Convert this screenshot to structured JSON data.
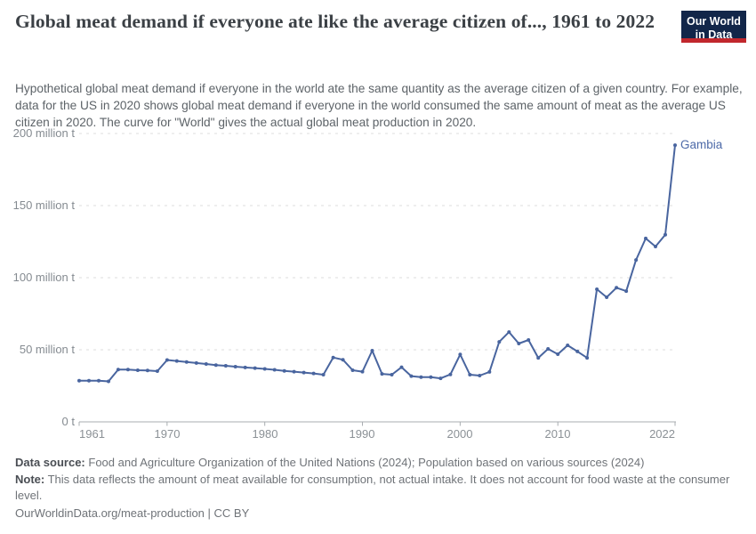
{
  "header": {
    "title": "Global meat demand if everyone ate like the average citizen of..., 1961 to 2022",
    "logo": {
      "line1": "Our World",
      "line2": "in Data",
      "bg_color": "#122649",
      "accent_color": "#c1272d"
    }
  },
  "subtitle": "Hypothetical global meat demand if everyone in the world ate the same quantity as the average citizen of a given country. For example, data for the US in 2020 shows global meat demand if everyone in the world consumed the same amount of meat as the average US citizen in 2020. The curve for \"World\" gives the actual global meat production in 2020.",
  "chart_data": {
    "type": "line",
    "series_label": "Gambia",
    "unit": "million t",
    "x": [
      1961,
      1962,
      1963,
      1964,
      1965,
      1966,
      1967,
      1968,
      1969,
      1970,
      1971,
      1972,
      1973,
      1974,
      1975,
      1976,
      1977,
      1978,
      1979,
      1980,
      1981,
      1982,
      1983,
      1984,
      1985,
      1986,
      1987,
      1988,
      1989,
      1990,
      1991,
      1992,
      1993,
      1994,
      1995,
      1996,
      1997,
      1998,
      1999,
      2000,
      2001,
      2002,
      2003,
      2004,
      2005,
      2006,
      2007,
      2008,
      2009,
      2010,
      2011,
      2012,
      2013,
      2014,
      2015,
      2016,
      2017,
      2018,
      2019,
      2020,
      2021,
      2022
    ],
    "values": [
      28.6,
      28.6,
      28.5,
      28.1,
      36.3,
      36.3,
      35.8,
      35.6,
      35.2,
      42.9,
      42.2,
      41.5,
      40.8,
      40.1,
      39.4,
      38.9,
      38.3,
      37.7,
      37.3,
      36.7,
      36.1,
      35.4,
      34.8,
      34.2,
      33.6,
      32.7,
      44.6,
      43.1,
      35.8,
      34.8,
      49.4,
      33.3,
      32.7,
      37.9,
      31.7,
      31.0,
      31.0,
      30.2,
      32.9,
      46.7,
      32.7,
      32.1,
      34.6,
      55.5,
      62.3,
      54.3,
      56.8,
      44.4,
      50.6,
      46.9,
      53.1,
      48.8,
      44.4,
      92.0,
      86.4,
      93.0,
      90.7,
      112.3,
      127.2,
      121.6,
      129.8,
      191.9
    ],
    "xlim": [
      1961,
      2022
    ],
    "ylim": [
      0,
      200
    ],
    "xticks": [
      1961,
      1970,
      1980,
      1990,
      2000,
      2010,
      2022
    ],
    "ytick_values": [
      0,
      50,
      100,
      150,
      200
    ],
    "ytick_labels": [
      "0 t",
      "50 million t",
      "100 million t",
      "150 million t",
      "200 million t"
    ],
    "grid": "horizontal dashed",
    "legend": "end-of-line label",
    "line_color": "#49659f",
    "label_color": "#4d6aa8",
    "grid_color": "#dcdcdc",
    "axis_color": "#a8acb0"
  },
  "footer": {
    "data_source_label": "Data source:",
    "data_source": "Food and Agriculture Organization of the United Nations (2024); Population based on various sources (2024)",
    "note_label": "Note:",
    "note": "This data reflects the amount of meat available for consumption, not actual intake. It does not account for food waste at the consumer level.",
    "link": "OurWorldinData.org/meat-production | CC BY"
  }
}
